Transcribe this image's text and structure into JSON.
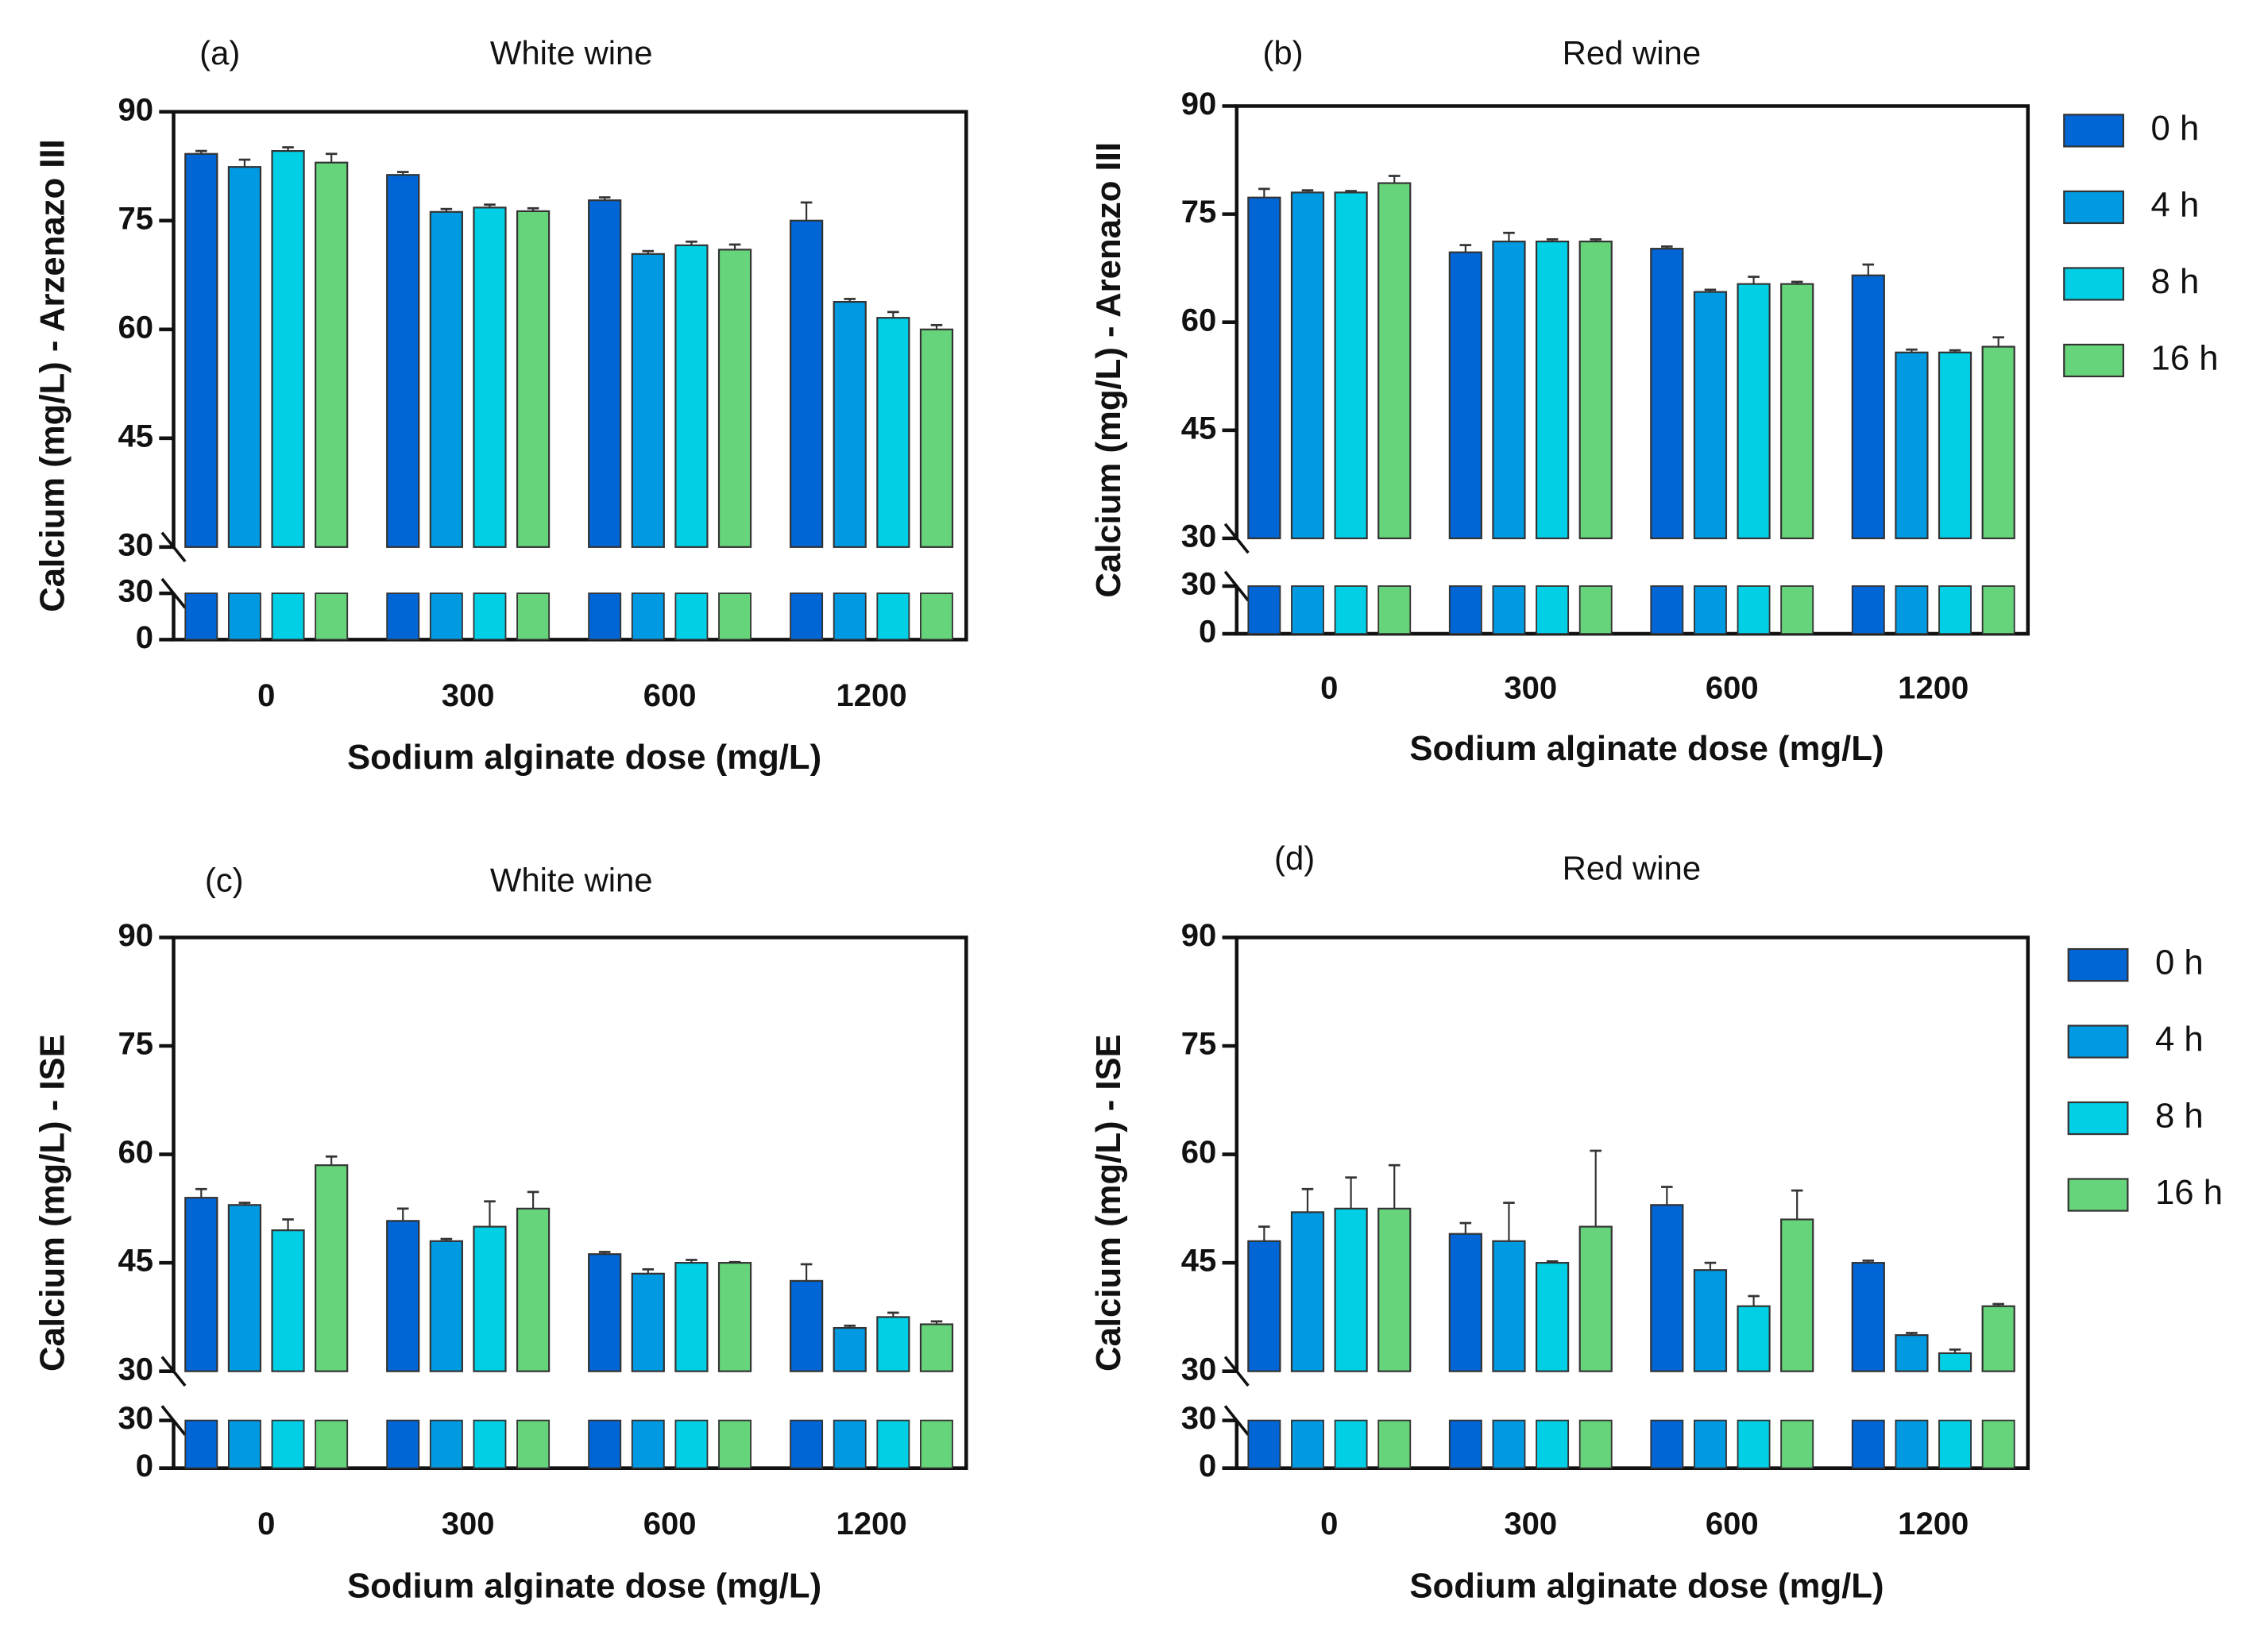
{
  "colors": {
    "0 h": "#0066d6",
    "4 h": "#009ae2",
    "8 h": "#00cfe6",
    "16 h": "#66d47a"
  },
  "legend": [
    "0 h",
    "4 h",
    "8 h",
    "16 h"
  ],
  "chart_data": [
    {
      "type": "bar",
      "panel": "(a)",
      "title": "White wine",
      "xlabel": "Sodium alginate dose (mg/L)",
      "ylabel": "Calcium (mg/L) - Arzenazo III",
      "categories": [
        "0",
        "300",
        "600",
        "1200"
      ],
      "yticks_upper": [
        "30",
        "45",
        "60",
        "75",
        "90"
      ],
      "yticks_lower": [
        "0",
        "30"
      ],
      "ylim": [
        0,
        90
      ],
      "axis_break": [
        30,
        30
      ],
      "series": [
        {
          "name": "0 h",
          "values": [
            84.2,
            81.3,
            77.8,
            75.0
          ],
          "errors": [
            0.4,
            0.4,
            0.4,
            2.5
          ]
        },
        {
          "name": "4 h",
          "values": [
            82.4,
            76.2,
            70.4,
            63.8
          ],
          "errors": [
            1.0,
            0.4,
            0.4,
            0.4
          ]
        },
        {
          "name": "8 h",
          "values": [
            84.6,
            76.8,
            71.6,
            61.6
          ],
          "errors": [
            0.5,
            0.4,
            0.5,
            0.8
          ]
        },
        {
          "name": "16 h",
          "values": [
            83.0,
            76.3,
            71.0,
            60.0
          ],
          "errors": [
            1.2,
            0.4,
            0.7,
            0.6
          ]
        }
      ]
    },
    {
      "type": "bar",
      "panel": "(b)",
      "title": "Red wine",
      "xlabel": "Sodium alginate dose (mg/L)",
      "ylabel": "Calcium (mg/L) - Arenazo III",
      "categories": [
        "0",
        "300",
        "600",
        "1200"
      ],
      "yticks_upper": [
        "30",
        "45",
        "60",
        "75",
        "90"
      ],
      "yticks_lower": [
        "0",
        "30"
      ],
      "ylim": [
        0,
        90
      ],
      "axis_break": [
        30,
        30
      ],
      "series": [
        {
          "name": "0 h",
          "values": [
            77.3,
            69.7,
            70.2,
            66.5
          ],
          "errors": [
            1.2,
            1.0,
            0.3,
            1.5
          ]
        },
        {
          "name": "4 h",
          "values": [
            78.0,
            71.2,
            64.2,
            55.8
          ],
          "errors": [
            0.3,
            1.2,
            0.3,
            0.4
          ]
        },
        {
          "name": "8 h",
          "values": [
            78.0,
            71.2,
            65.3,
            55.8
          ],
          "errors": [
            0.2,
            0.3,
            1.0,
            0.3
          ]
        },
        {
          "name": "16 h",
          "values": [
            79.3,
            71.2,
            65.3,
            56.6
          ],
          "errors": [
            1.0,
            0.3,
            0.3,
            1.3
          ]
        }
      ]
    },
    {
      "type": "bar",
      "panel": "(c)",
      "title": "White wine",
      "xlabel": "Sodium alginate dose (mg/L)",
      "ylabel": "Calcium (mg/L) - ISE",
      "categories": [
        "0",
        "300",
        "600",
        "1200"
      ],
      "yticks_upper": [
        "30",
        "45",
        "60",
        "75",
        "90"
      ],
      "yticks_lower": [
        "0",
        "30"
      ],
      "ylim": [
        0,
        90
      ],
      "axis_break": [
        30,
        30
      ],
      "series": [
        {
          "name": "0 h",
          "values": [
            54.0,
            50.8,
            46.2,
            42.5
          ],
          "errors": [
            1.2,
            1.7,
            0.3,
            2.3
          ]
        },
        {
          "name": "4 h",
          "values": [
            53.0,
            48.0,
            43.5,
            36.0
          ],
          "errors": [
            0.3,
            0.3,
            0.6,
            0.3
          ]
        },
        {
          "name": "8 h",
          "values": [
            49.5,
            50.0,
            45.0,
            37.5
          ],
          "errors": [
            1.5,
            3.5,
            0.4,
            0.6
          ]
        },
        {
          "name": "16 h",
          "values": [
            58.5,
            52.5,
            45.0,
            36.5
          ],
          "errors": [
            1.2,
            2.3,
            0.1,
            0.4
          ]
        }
      ]
    },
    {
      "type": "bar",
      "panel": "(d)",
      "title": "Red wine",
      "xlabel": "Sodium alginate dose (mg/L)",
      "ylabel": "Calcium (mg/L) - ISE",
      "categories": [
        "0",
        "300",
        "600",
        "1200"
      ],
      "yticks_upper": [
        "30",
        "45",
        "60",
        "75",
        "90"
      ],
      "yticks_lower": [
        "0",
        "30"
      ],
      "ylim": [
        0,
        90
      ],
      "axis_break": [
        30,
        30
      ],
      "series": [
        {
          "name": "0 h",
          "values": [
            48.0,
            49.0,
            53.0,
            45.0
          ],
          "errors": [
            2.0,
            1.5,
            2.5,
            0.3
          ]
        },
        {
          "name": "4 h",
          "values": [
            52.0,
            48.0,
            44.0,
            35.0
          ],
          "errors": [
            3.2,
            5.3,
            1.0,
            0.3
          ]
        },
        {
          "name": "8 h",
          "values": [
            52.5,
            45.0,
            39.0,
            32.5
          ],
          "errors": [
            4.3,
            0.2,
            1.4,
            0.5
          ]
        },
        {
          "name": "16 h",
          "values": [
            52.5,
            50.0,
            51.0,
            39.0
          ],
          "errors": [
            6.0,
            10.5,
            4.0,
            0.3
          ]
        }
      ]
    }
  ]
}
